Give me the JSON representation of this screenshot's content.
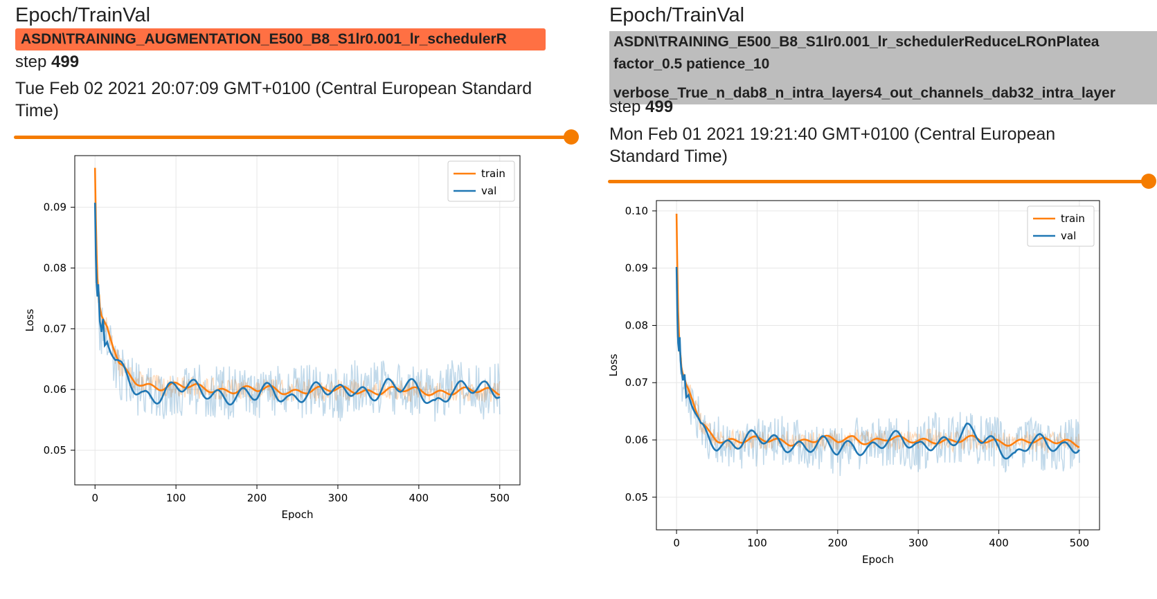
{
  "colors": {
    "accent": "#f57c00",
    "selected_run_bg": "#ff7043",
    "run_bg": "#bdbdbd",
    "train": "#ff7f0e",
    "val": "#1f77b4"
  },
  "cards": [
    {
      "title": "Epoch/TrainVal",
      "run_lines": [
        "ASDN\\TRAINING_AUGMENTATION_E500_B8_S1lr0.001_lr_schedulerR"
      ],
      "step_label": "step",
      "step_value": "499",
      "datetime": "Tue Feb 02 2021 20:07:09 GMT+0100 (Central European Standard Time)",
      "slider_fraction": 1.0,
      "chart_data": {
        "type": "line",
        "xlabel": "Epoch",
        "ylabel": "Loss",
        "xlim": [
          -25,
          525
        ],
        "ylim": [
          0.0443,
          0.0985
        ],
        "xticks": [
          0,
          100,
          200,
          300,
          400,
          500
        ],
        "yticks": [
          0.05,
          0.06,
          0.07,
          0.08,
          0.09
        ],
        "ytick_labels": [
          "0.05",
          "0.06",
          "0.07",
          "0.08",
          "0.09"
        ],
        "grid": true,
        "legend_position": "upper-right",
        "series": [
          {
            "name": "train",
            "x": [
              0,
              1,
              2,
              3,
              4,
              5,
              6,
              8,
              10,
              12,
              15,
              20,
              25,
              30,
              40,
              50,
              60,
              80,
              100,
              120,
              140,
              160,
              180,
              200,
              220,
              240,
              260,
              280,
              300,
              320,
              340,
              360,
              380,
              400,
              420,
              440,
              460,
              480,
              500
            ],
            "y": [
              0.0965,
              0.088,
              0.082,
              0.078,
              0.076,
              0.075,
              0.073,
              0.0715,
              0.071,
              0.0705,
              0.07,
              0.068,
              0.066,
              0.064,
              0.0625,
              0.0615,
              0.061,
              0.0605,
              0.0605,
              0.0603,
              0.0602,
              0.06,
              0.06,
              0.0598,
              0.06,
              0.0598,
              0.06,
              0.0598,
              0.0598,
              0.06,
              0.0598,
              0.0598,
              0.0598,
              0.0597,
              0.0597,
              0.0598,
              0.0597,
              0.0596,
              0.0597
            ]
          },
          {
            "name": "val",
            "x": [
              0,
              1,
              2,
              3,
              4,
              5,
              6,
              8,
              10,
              12,
              15,
              20,
              25,
              30,
              40,
              50,
              60,
              80,
              100,
              120,
              140,
              160,
              180,
              200,
              220,
              240,
              260,
              280,
              300,
              320,
              340,
              360,
              380,
              400,
              420,
              440,
              460,
              480,
              500
            ],
            "y": [
              0.0898,
              0.081,
              0.076,
              0.074,
              0.076,
              0.073,
              0.07,
              0.0685,
              0.071,
              0.067,
              0.068,
              0.066,
              0.064,
              0.063,
              0.062,
              0.0605,
              0.0595,
              0.0595,
              0.06,
              0.0598,
              0.0598,
              0.0595,
              0.059,
              0.0585,
              0.0598,
              0.0588,
              0.06,
              0.0598,
              0.0588,
              0.0605,
              0.0598,
              0.0605,
              0.0598,
              0.06,
              0.058,
              0.0605,
              0.0598,
              0.0595,
              0.06
            ]
          }
        ]
      }
    },
    {
      "title": "Epoch/TrainVal",
      "run_lines": [
        "ASDN\\TRAINING_E500_B8_S1lr0.001_lr_schedulerReduceLROnPlatea",
        "factor_0.5 patience_10",
        "verbose_True_n_dab8_n_intra_layers4_out_channels_dab32_intra_layer"
      ],
      "step_label": "step",
      "step_value": "499",
      "datetime": "Mon Feb 01 2021 19:21:40 GMT+0100 (Central European Standard Time)",
      "slider_fraction": 1.0,
      "chart_data": {
        "type": "line",
        "xlabel": "Epoch",
        "ylabel": "Loss",
        "xlim": [
          -25,
          525
        ],
        "ylim": [
          0.0443,
          0.1018
        ],
        "xticks": [
          0,
          100,
          200,
          300,
          400,
          500
        ],
        "yticks": [
          0.05,
          0.06,
          0.07,
          0.08,
          0.09,
          0.1
        ],
        "ytick_labels": [
          "0.05",
          "0.06",
          "0.07",
          "0.08",
          "0.09",
          "0.10"
        ],
        "grid": true,
        "legend_position": "upper-right",
        "series": [
          {
            "name": "train",
            "x": [
              0,
              1,
              2,
              3,
              4,
              5,
              6,
              8,
              10,
              12,
              15,
              20,
              25,
              30,
              40,
              50,
              60,
              80,
              100,
              120,
              140,
              160,
              180,
              200,
              220,
              240,
              260,
              280,
              300,
              320,
              340,
              360,
              380,
              400,
              420,
              440,
              460,
              480,
              500
            ],
            "y": [
              0.0992,
              0.089,
              0.082,
              0.078,
              0.075,
              0.074,
              0.072,
              0.0705,
              0.07,
              0.069,
              0.0685,
              0.067,
              0.065,
              0.063,
              0.0615,
              0.0605,
              0.06,
              0.0598,
              0.0598,
              0.06,
              0.0598,
              0.0598,
              0.06,
              0.0598,
              0.0605,
              0.0598,
              0.0602,
              0.0598,
              0.0598,
              0.0602,
              0.0598,
              0.06,
              0.0598,
              0.0598,
              0.0598,
              0.0598,
              0.0595,
              0.0598,
              0.0595
            ]
          },
          {
            "name": "val",
            "x": [
              0,
              1,
              2,
              3,
              4,
              5,
              6,
              8,
              10,
              12,
              15,
              20,
              25,
              30,
              40,
              50,
              60,
              80,
              100,
              120,
              140,
              160,
              180,
              200,
              220,
              240,
              260,
              280,
              300,
              320,
              340,
              360,
              380,
              400,
              420,
              440,
              460,
              480,
              500
            ],
            "y": [
              0.0885,
              0.08,
              0.075,
              0.0735,
              0.076,
              0.072,
              0.0705,
              0.069,
              0.0705,
              0.067,
              0.068,
              0.066,
              0.064,
              0.062,
              0.061,
              0.06,
              0.0595,
              0.0595,
              0.0598,
              0.0598,
              0.0598,
              0.059,
              0.0588,
              0.0578,
              0.0595,
              0.059,
              0.0598,
              0.0595,
              0.0585,
              0.0605,
              0.0598,
              0.061,
              0.0598,
              0.0595,
              0.0575,
              0.0598,
              0.0585,
              0.0585,
              0.06
            ]
          }
        ]
      }
    }
  ]
}
